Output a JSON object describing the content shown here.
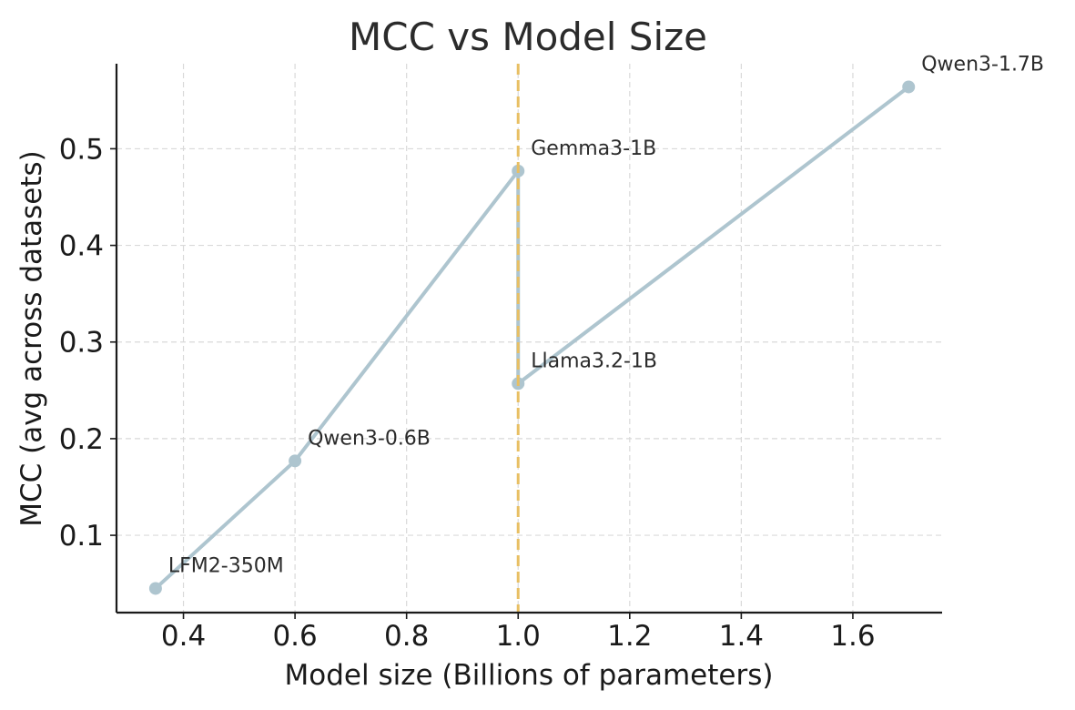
{
  "chart_data": {
    "type": "line",
    "title": "MCC vs Model Size",
    "xlabel": "Model size (Billions of parameters)",
    "ylabel": "MCC (avg across datasets)",
    "xlim": [
      0.28,
      1.76
    ],
    "ylim": [
      0.02,
      0.588
    ],
    "xticks": [
      0.4,
      0.6,
      0.8,
      1.0,
      1.2,
      1.4,
      1.6
    ],
    "xtick_labels": [
      "0.4",
      "0.6",
      "0.8",
      "1.0",
      "1.2",
      "1.4",
      "1.6"
    ],
    "yticks": [
      0.1,
      0.2,
      0.3,
      0.4,
      0.5
    ],
    "ytick_labels": [
      "0.1",
      "0.2",
      "0.3",
      "0.4",
      "0.5"
    ],
    "grid": true,
    "series": [
      {
        "name": "MCC",
        "color": "#aec5cf",
        "points": [
          {
            "label": "LFM2-350M",
            "x": 0.35,
            "y": 0.045
          },
          {
            "label": "Qwen3-0.6B",
            "x": 0.6,
            "y": 0.177
          },
          {
            "label": "Gemma3-1B",
            "x": 1.0,
            "y": 0.477
          },
          {
            "label": "Llama3.2-1B",
            "x": 1.0,
            "y": 0.257
          },
          {
            "label": "Qwen3-1.7B",
            "x": 1.7,
            "y": 0.564
          }
        ]
      }
    ],
    "reference_line": {
      "x": 1.0,
      "color": "#e8bf63",
      "style": "dashed"
    }
  }
}
